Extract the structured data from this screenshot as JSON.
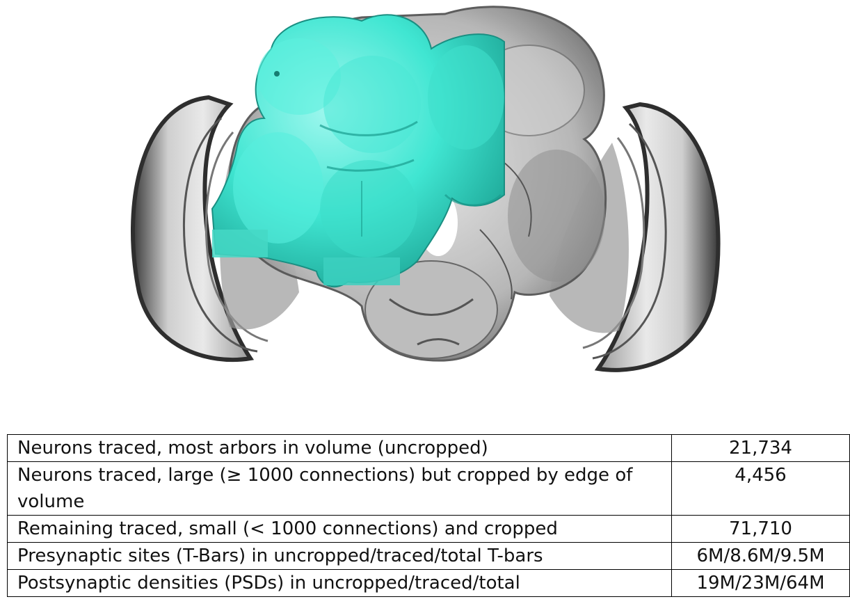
{
  "colors": {
    "traced_region": "#40e6d2",
    "brain_shell": "#b4b4b4",
    "optic_lobe_edge": "#2e2e2e",
    "table_border": "#000000"
  },
  "table": {
    "rows": [
      {
        "label": "Neurons traced, most arbors in volume (uncropped)",
        "value": "21,734"
      },
      {
        "label": "Neurons traced, large (≥ 1000 connections) but cropped by edge of volume",
        "value": "4,456"
      },
      {
        "label": "Remaining traced, small (< 1000 connections) and cropped",
        "value": "71,710"
      },
      {
        "label": "Presynaptic sites (T-Bars) in uncropped/traced/total T-bars",
        "value": "6M/8.6M/9.5M"
      },
      {
        "label": "Postsynaptic densities (PSDs) in uncropped/traced/total",
        "value": "19M/23M/64M"
      }
    ]
  }
}
